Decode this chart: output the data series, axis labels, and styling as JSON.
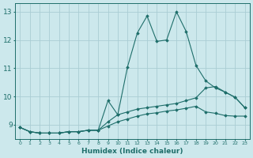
{
  "xlabel": "Humidex (Indice chaleur)",
  "background_color": "#cce8ec",
  "grid_color": "#aacdd4",
  "line_color": "#1e6e6a",
  "xlim": [
    -0.5,
    23.5
  ],
  "ylim": [
    8.5,
    13.3
  ],
  "yticks": [
    9,
    10,
    11,
    12,
    13
  ],
  "xticks": [
    0,
    1,
    2,
    3,
    4,
    5,
    6,
    7,
    8,
    9,
    10,
    11,
    12,
    13,
    14,
    15,
    16,
    17,
    18,
    19,
    20,
    21,
    22,
    23
  ],
  "line1_x": [
    0,
    1,
    2,
    3,
    4,
    5,
    6,
    7,
    8,
    9,
    10,
    11,
    12,
    13,
    14,
    15,
    16,
    17,
    18,
    19,
    20,
    21,
    22,
    23
  ],
  "line1_y": [
    8.9,
    8.75,
    8.7,
    8.7,
    8.7,
    8.75,
    8.75,
    8.8,
    8.8,
    9.85,
    9.35,
    11.05,
    12.25,
    12.85,
    11.95,
    12.0,
    13.0,
    12.3,
    11.1,
    10.55,
    10.3,
    10.15,
    9.97,
    9.6
  ],
  "line2_x": [
    0,
    1,
    2,
    3,
    4,
    5,
    6,
    7,
    8,
    9,
    10,
    11,
    12,
    13,
    14,
    15,
    16,
    17,
    18,
    19,
    20,
    21,
    22,
    23
  ],
  "line2_y": [
    8.9,
    8.75,
    8.7,
    8.7,
    8.7,
    8.75,
    8.75,
    8.8,
    8.8,
    9.1,
    9.35,
    9.45,
    9.55,
    9.6,
    9.65,
    9.7,
    9.75,
    9.85,
    9.95,
    10.3,
    10.35,
    10.15,
    9.97,
    9.6
  ],
  "line3_x": [
    0,
    1,
    2,
    3,
    4,
    5,
    6,
    7,
    8,
    9,
    10,
    11,
    12,
    13,
    14,
    15,
    16,
    17,
    18,
    19,
    20,
    21,
    22,
    23
  ],
  "line3_y": [
    8.9,
    8.75,
    8.7,
    8.7,
    8.7,
    8.75,
    8.75,
    8.8,
    8.8,
    8.95,
    9.1,
    9.2,
    9.3,
    9.38,
    9.42,
    9.48,
    9.52,
    9.58,
    9.65,
    9.45,
    9.4,
    9.32,
    9.3,
    9.3
  ]
}
